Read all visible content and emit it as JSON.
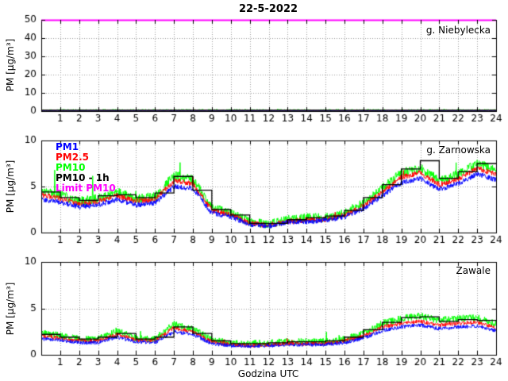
{
  "title": "22-5-2022",
  "xlabel": "Godzina UTC",
  "ylabel": "PM [µg/m³]",
  "limit_value": 50,
  "legend": [
    {
      "label": "PM1",
      "color": "#0000ff"
    },
    {
      "label": "PM2.5",
      "color": "#ff0000"
    },
    {
      "label": "PM10",
      "color": "#00ff00"
    },
    {
      "label": "PM10 - 1h",
      "color": "#000000"
    },
    {
      "label": "Limit PM10",
      "color": "#ff00ff"
    }
  ],
  "chart_data": [
    {
      "type": "line",
      "station": "g. Niebylecka",
      "xlim": [
        0,
        24
      ],
      "ylim": [
        0,
        50
      ],
      "xticks": [
        1,
        2,
        3,
        4,
        5,
        6,
        7,
        8,
        9,
        10,
        11,
        12,
        13,
        14,
        15,
        16,
        17,
        18,
        19,
        20,
        21,
        22,
        23,
        24
      ],
      "yticks": [
        0,
        10,
        20,
        30,
        40,
        50
      ],
      "grid": true,
      "limit_pm10": 50,
      "x_hours": [
        0,
        1,
        2,
        3,
        4,
        5,
        6,
        7,
        8,
        9,
        10,
        11,
        12,
        13,
        14,
        15,
        16,
        17,
        18,
        19,
        20,
        21,
        22,
        23,
        24
      ],
      "series": [
        {
          "name": "PM1",
          "color": "#0000ff",
          "noise": 0.15,
          "spike": 0.1,
          "values": [
            0.3,
            0.3,
            0.3,
            0.3,
            0.3,
            0.3,
            0.3,
            0.3,
            0.3,
            0.3,
            0.3,
            0.3,
            0.3,
            0.3,
            0.3,
            0.3,
            0.3,
            0.3,
            0.3,
            0.3,
            0.3,
            0.3,
            0.3,
            0.3,
            0.3
          ]
        },
        {
          "name": "PM2.5",
          "color": "#ff0000",
          "noise": 0.2,
          "spike": 0.2,
          "values": [
            0.4,
            0.4,
            0.4,
            0.4,
            0.4,
            0.4,
            0.4,
            0.4,
            0.4,
            0.4,
            0.4,
            0.4,
            0.4,
            0.4,
            0.4,
            0.4,
            0.4,
            0.4,
            0.4,
            0.4,
            0.4,
            0.4,
            0.4,
            0.4,
            0.4
          ]
        },
        {
          "name": "PM10",
          "color": "#00ff00",
          "noise": 0.4,
          "spike": 0.5,
          "values": [
            0.6,
            0.6,
            0.6,
            0.6,
            0.6,
            0.6,
            0.6,
            0.6,
            0.6,
            0.6,
            0.6,
            0.6,
            0.6,
            0.6,
            0.6,
            0.6,
            0.6,
            0.6,
            0.6,
            0.6,
            0.6,
            0.6,
            0.6,
            0.6,
            0.6
          ]
        },
        {
          "name": "PM10 - 1h",
          "color": "#000000",
          "step": true,
          "values": [
            0.5,
            0.5,
            0.5,
            0.5,
            0.5,
            0.5,
            0.5,
            0.5,
            0.5,
            0.5,
            0.5,
            0.5,
            0.5,
            0.5,
            0.5,
            0.5,
            0.5,
            0.5,
            0.5,
            0.5,
            0.5,
            0.5,
            0.5,
            0.5
          ]
        }
      ]
    },
    {
      "type": "line",
      "station": "g. Zarnowska",
      "xlim": [
        0,
        24
      ],
      "ylim": [
        0,
        10
      ],
      "xticks": [
        1,
        2,
        3,
        4,
        5,
        6,
        7,
        8,
        9,
        10,
        11,
        12,
        13,
        14,
        15,
        16,
        17,
        18,
        19,
        20,
        21,
        22,
        23,
        24
      ],
      "yticks": [
        0,
        5,
        10
      ],
      "grid": true,
      "limit_pm10": 50,
      "x_hours": [
        0,
        1,
        2,
        3,
        4,
        5,
        6,
        7,
        8,
        9,
        10,
        11,
        12,
        13,
        14,
        15,
        16,
        17,
        18,
        19,
        20,
        21,
        22,
        23,
        24
      ],
      "series": [
        {
          "name": "PM1",
          "color": "#0000ff",
          "noise": 0.28,
          "spike": 0.3,
          "values": [
            3.6,
            3.3,
            2.8,
            3.0,
            3.6,
            3.0,
            3.2,
            5.0,
            4.8,
            2.1,
            1.7,
            0.9,
            0.7,
            1.1,
            1.2,
            1.3,
            1.7,
            2.6,
            4.0,
            5.4,
            5.9,
            4.7,
            5.3,
            6.4,
            5.7
          ]
        },
        {
          "name": "PM2.5",
          "color": "#ff0000",
          "noise": 0.3,
          "spike": 0.5,
          "values": [
            4.1,
            3.7,
            3.1,
            3.4,
            4.0,
            3.4,
            3.6,
            5.6,
            5.3,
            2.4,
            1.9,
            1.0,
            0.8,
            1.2,
            1.4,
            1.4,
            1.9,
            2.9,
            4.4,
            6.0,
            6.5,
            5.2,
            5.8,
            7.0,
            6.3
          ]
        },
        {
          "name": "PM10",
          "color": "#00ff00",
          "noise": 0.5,
          "spike": 2.5,
          "values": [
            4.6,
            4.1,
            3.4,
            3.7,
            4.4,
            3.7,
            3.9,
            6.2,
            5.8,
            2.7,
            2.1,
            1.2,
            0.9,
            1.4,
            1.6,
            1.6,
            2.1,
            3.2,
            4.8,
            6.5,
            7.0,
            5.7,
            6.3,
            7.5,
            6.8
          ]
        },
        {
          "name": "PM10 - 1h",
          "color": "#000000",
          "step": true,
          "values": [
            4.4,
            3.8,
            3.5,
            4.0,
            4.1,
            3.8,
            4.3,
            6.1,
            4.6,
            2.5,
            1.9,
            1.0,
            1.0,
            1.4,
            1.6,
            1.8,
            2.4,
            3.8,
            5.2,
            6.9,
            7.8,
            5.9,
            6.6,
            7.5
          ]
        }
      ]
    },
    {
      "type": "line",
      "station": "Zawale",
      "xlim": [
        0,
        24
      ],
      "ylim": [
        0,
        10
      ],
      "xticks": [
        1,
        2,
        3,
        4,
        5,
        6,
        7,
        8,
        9,
        10,
        11,
        12,
        13,
        14,
        15,
        16,
        17,
        18,
        19,
        20,
        21,
        22,
        23,
        24
      ],
      "yticks": [
        0,
        5,
        10
      ],
      "grid": true,
      "limit_pm10": 50,
      "x_hours": [
        0,
        1,
        2,
        3,
        4,
        5,
        6,
        7,
        8,
        9,
        10,
        11,
        12,
        13,
        14,
        15,
        16,
        17,
        18,
        19,
        20,
        21,
        22,
        23,
        24
      ],
      "series": [
        {
          "name": "PM1",
          "color": "#0000ff",
          "noise": 0.2,
          "spike": 0.2,
          "values": [
            1.7,
            1.6,
            1.3,
            1.3,
            1.9,
            1.4,
            1.3,
            2.5,
            2.2,
            1.2,
            1.0,
            0.9,
            1.0,
            1.1,
            1.1,
            1.1,
            1.3,
            1.8,
            2.6,
            3.0,
            3.2,
            2.8,
            3.0,
            3.1,
            2.6
          ]
        },
        {
          "name": "PM2.5",
          "color": "#ff0000",
          "noise": 0.22,
          "spike": 0.4,
          "values": [
            2.0,
            1.8,
            1.5,
            1.5,
            2.2,
            1.6,
            1.5,
            2.9,
            2.5,
            1.4,
            1.1,
            1.0,
            1.1,
            1.2,
            1.2,
            1.2,
            1.5,
            2.0,
            3.0,
            3.4,
            3.6,
            3.2,
            3.4,
            3.5,
            2.9
          ]
        },
        {
          "name": "PM10",
          "color": "#00ff00",
          "noise": 0.38,
          "spike": 1.4,
          "values": [
            2.3,
            2.1,
            1.7,
            1.7,
            2.6,
            1.8,
            1.7,
            3.3,
            2.8,
            1.6,
            1.3,
            1.2,
            1.3,
            1.4,
            1.4,
            1.4,
            1.7,
            2.3,
            3.4,
            3.9,
            4.2,
            3.7,
            3.9,
            4.0,
            3.3
          ]
        },
        {
          "name": "PM10 - 1h",
          "color": "#000000",
          "step": true,
          "values": [
            2.2,
            1.9,
            1.7,
            1.9,
            2.3,
            1.7,
            1.9,
            3.0,
            2.3,
            1.5,
            1.2,
            1.2,
            1.3,
            1.4,
            1.4,
            1.5,
            1.9,
            2.7,
            3.5,
            4.0,
            4.1,
            3.6,
            3.8,
            3.7
          ]
        }
      ]
    }
  ]
}
